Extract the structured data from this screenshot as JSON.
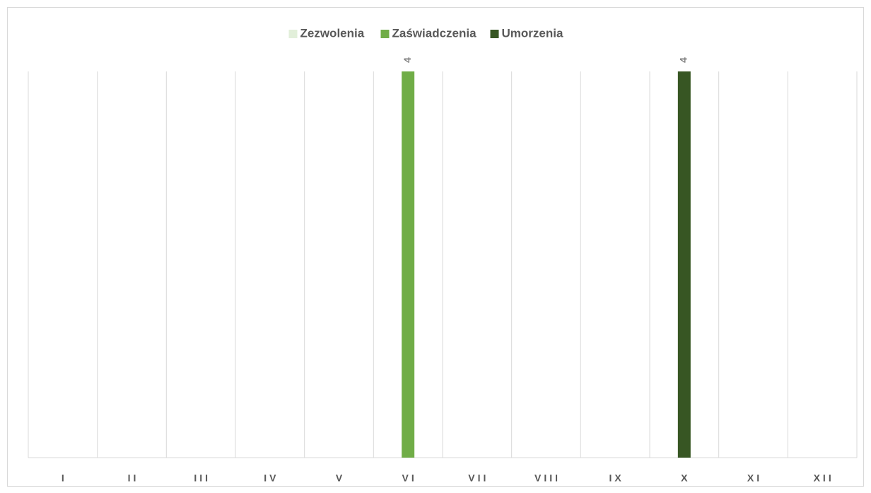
{
  "chart_data": {
    "type": "bar",
    "categories": [
      "I",
      "II",
      "III",
      "IV",
      "V",
      "VI",
      "VII",
      "VIII",
      "IX",
      "X",
      "XI",
      "XII"
    ],
    "series": [
      {
        "name": "Zezwolenia",
        "color": "#e2efda",
        "values": [
          null,
          null,
          null,
          null,
          null,
          null,
          null,
          null,
          null,
          null,
          null,
          null
        ]
      },
      {
        "name": "Zaświadczenia",
        "color": "#70ad47",
        "values": [
          null,
          null,
          null,
          null,
          null,
          4,
          null,
          null,
          null,
          null,
          null,
          null
        ]
      },
      {
        "name": "Umorzenia",
        "color": "#375623",
        "values": [
          null,
          null,
          null,
          null,
          null,
          null,
          null,
          null,
          null,
          4,
          null,
          null
        ]
      }
    ],
    "ylim": [
      0,
      4
    ],
    "legend": "top",
    "grid": "vertical"
  }
}
